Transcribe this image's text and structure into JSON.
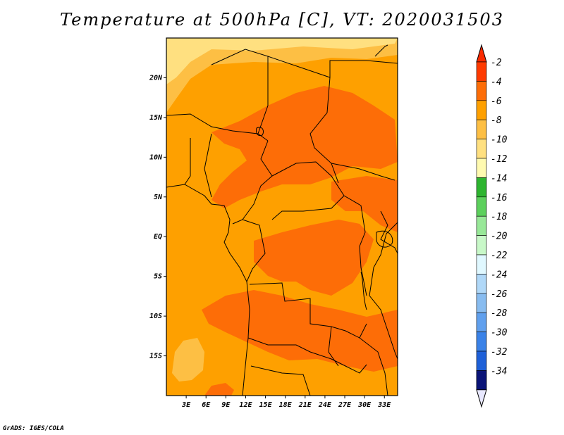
{
  "title": "Temperature at 500hPa [C], VT: 2020031503",
  "footer": "GrADS: IGES/COLA",
  "map": {
    "lon_range": [
      0,
      35
    ],
    "lat_range": [
      -20,
      25
    ],
    "lat_ticks": [
      {
        "value": 20,
        "label": "20N"
      },
      {
        "value": 15,
        "label": "15N"
      },
      {
        "value": 10,
        "label": "10N"
      },
      {
        "value": 5,
        "label": "5N"
      },
      {
        "value": 0,
        "label": "EQ"
      },
      {
        "value": -5,
        "label": "5S"
      },
      {
        "value": -10,
        "label": "10S"
      },
      {
        "value": -15,
        "label": "15S"
      }
    ],
    "lon_ticks": [
      {
        "value": 3,
        "label": "3E"
      },
      {
        "value": 6,
        "label": "6E"
      },
      {
        "value": 9,
        "label": "9E"
      },
      {
        "value": 12,
        "label": "12E"
      },
      {
        "value": 15,
        "label": "15E"
      },
      {
        "value": 18,
        "label": "18E"
      },
      {
        "value": 21,
        "label": "21E"
      },
      {
        "value": 24,
        "label": "24E"
      },
      {
        "value": 27,
        "label": "27E"
      },
      {
        "value": 30,
        "label": "30E"
      },
      {
        "value": 33,
        "label": "33E"
      }
    ],
    "base_color": "#fea000",
    "warm_color": "#fd6d07",
    "cool_color": "#fdbf44",
    "coolest_color": "#ffe080"
  },
  "colorbar": {
    "levels": [
      {
        "label": "-2",
        "color": "#fe3a00"
      },
      {
        "label": "-4",
        "color": "#fd6d07"
      },
      {
        "label": "-6",
        "color": "#fea000"
      },
      {
        "label": "-8",
        "color": "#fdbf44"
      },
      {
        "label": "-10",
        "color": "#ffe080"
      },
      {
        "label": "-12",
        "color": "#fffab0"
      },
      {
        "label": "-14",
        "color": "#2db52f"
      },
      {
        "label": "-16",
        "color": "#5cd05c"
      },
      {
        "label": "-18",
        "color": "#98e898"
      },
      {
        "label": "-20",
        "color": "#c8f8c8"
      },
      {
        "label": "-22",
        "color": "#e0f8ff"
      },
      {
        "label": "-24",
        "color": "#b0d8f8"
      },
      {
        "label": "-26",
        "color": "#88bcf0"
      },
      {
        "label": "-28",
        "color": "#60a0ee"
      },
      {
        "label": "-30",
        "color": "#3a82e8"
      },
      {
        "label": "-32",
        "color": "#1e60d8"
      },
      {
        "label": "-34",
        "color": "#1040b8"
      }
    ],
    "top_color": "#fa2a00",
    "bottom_segment_color": "#0a1478",
    "bottom_arrow_color": "#e8e8ff"
  }
}
